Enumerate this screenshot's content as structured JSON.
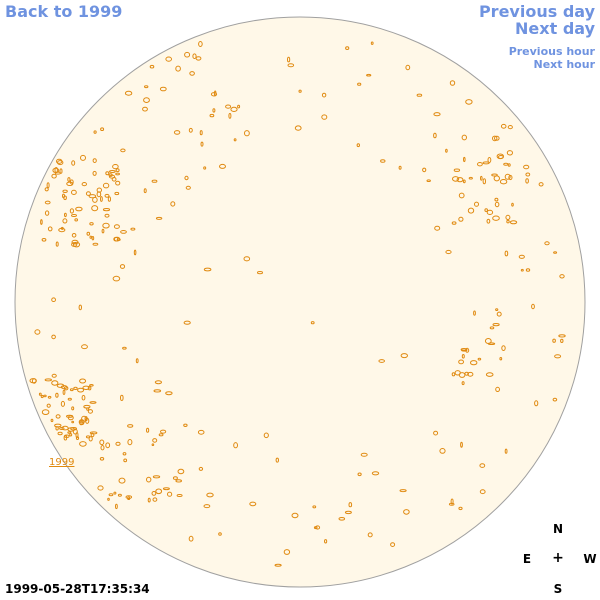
{
  "nav": {
    "back_label": "Back to 1999",
    "previous_day_label": "Previous day",
    "next_day_label": "Next day",
    "previous_hour_label": "Previous hour",
    "next_hour_label": "Next hour"
  },
  "year_label": "1999",
  "timestamp": "1999-05-28T17:35:34",
  "compass": {
    "north": "N",
    "south": "S",
    "east": "E",
    "west": "W",
    "center": "+"
  },
  "colors": {
    "link": "#6f93e0",
    "disk_fill": "#fff8e8",
    "disk_stroke": "#a0a0a0",
    "feature_stroke": "#e08a10"
  }
}
